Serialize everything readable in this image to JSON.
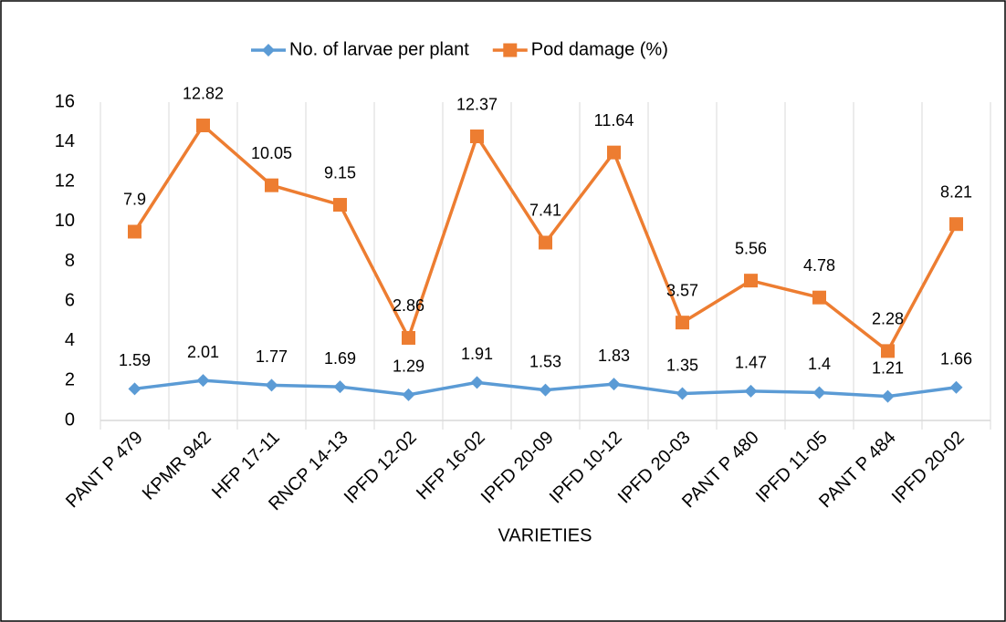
{
  "chart_data": {
    "type": "line",
    "stacked": true,
    "x_label": "VARIETIES",
    "categories": [
      "PANT P 479",
      "KPMR 942",
      "HFP 17-11",
      "RNCP 14-13",
      "IPFD 12-02",
      "HFP 16-02",
      "IPFD 20-09",
      "IPFD 10-12",
      "IPFD 20-03",
      "PANT P 480",
      "IPFD 11-05",
      "PANT P 484",
      "IPFD 20-02"
    ],
    "series": [
      {
        "name": "No. of larvae per plant",
        "color": "#5b9bd5",
        "marker": "diamond",
        "values": [
          1.59,
          2.01,
          1.77,
          1.69,
          1.29,
          1.91,
          1.53,
          1.83,
          1.35,
          1.47,
          1.4,
          1.21,
          1.66
        ]
      },
      {
        "name": "Pod damage (%)",
        "color": "#ed7d31",
        "marker": "square",
        "values": [
          7.9,
          12.82,
          10.05,
          9.15,
          2.86,
          12.37,
          7.41,
          11.64,
          3.57,
          5.56,
          4.78,
          2.28,
          8.21
        ]
      }
    ],
    "ylim": [
      0,
      16
    ],
    "yticks": [
      0,
      2,
      4,
      6,
      8,
      10,
      12,
      14,
      16
    ],
    "grid": true,
    "legend": "top"
  }
}
